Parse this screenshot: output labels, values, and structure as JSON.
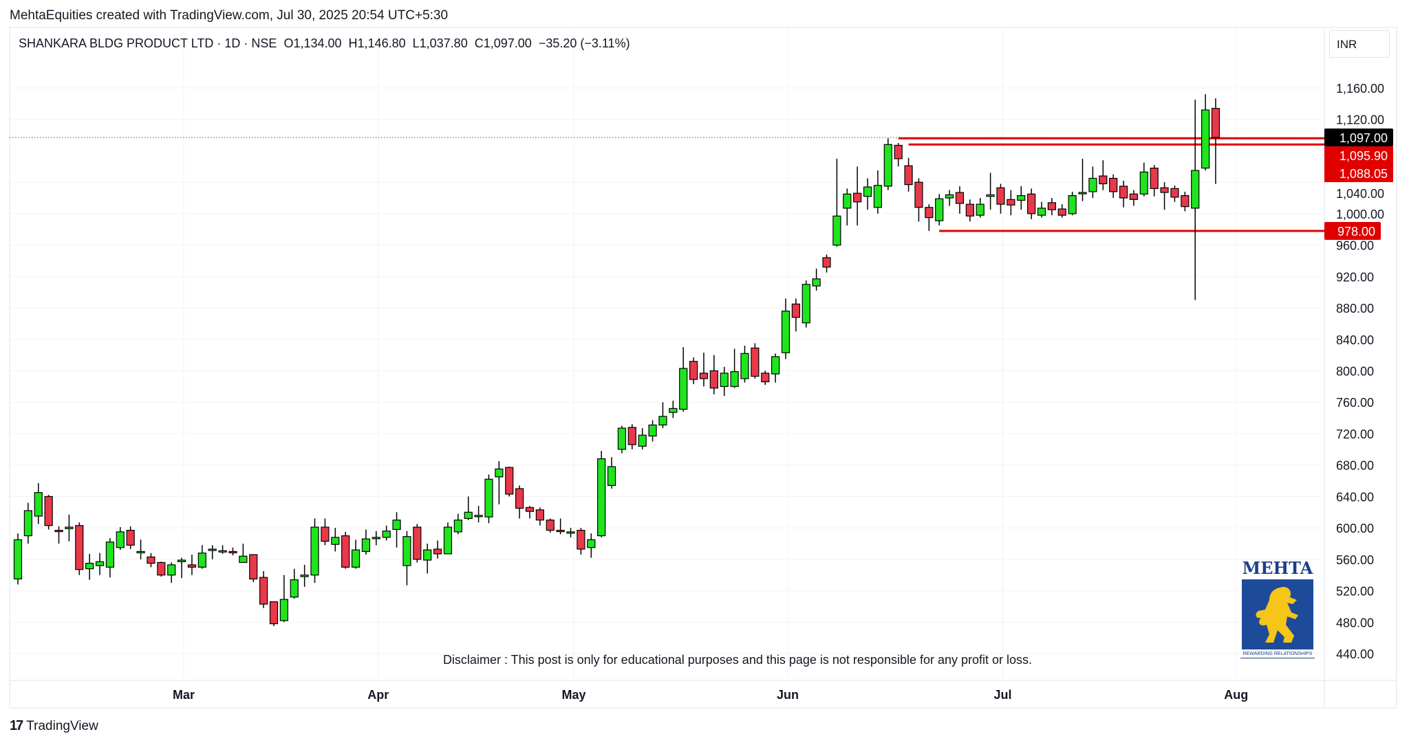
{
  "caption": "MehtaEquities created with TradingView.com, Jul 30, 2025 20:54 UTC+5:30",
  "legend": {
    "symbol": "SHANKARA BLDG PRODUCT LTD · 1D · NSE",
    "open": "O1,134.00",
    "high": "H1,146.80",
    "low": "L1,037.80",
    "close": "C1,097.00",
    "change": "−35.20 (−3.11%)"
  },
  "currency": "INR",
  "disclaimer": "Disclaimer : This post is only for educational purposes and this page is not responsible for any profit or loss.",
  "footer": {
    "brand": "TradingView",
    "logo_glyph": "17"
  },
  "watermark_logo": {
    "brand": "MEHTA",
    "tagline": "REWARDING RELATIONSHIPS"
  },
  "colors": {
    "up": "#1ee51e",
    "down": "#e8394a",
    "level": "#e00000",
    "last_price_bg": "#000000"
  },
  "chart_data": {
    "type": "candlestick",
    "title": "SHANKARA BLDG PRODUCT LTD · 1D · NSE",
    "ylim": [
      420,
      1180
    ],
    "yticks": [
      "1,160.00",
      "1,120.00",
      "1,000.00",
      "960.00",
      "920.00",
      "880.00",
      "840.00",
      "800.00",
      "760.00",
      "720.00",
      "680.00",
      "640.00",
      "600.00",
      "560.00",
      "520.00",
      "480.00",
      "440.00"
    ],
    "ytick_values": [
      1160,
      1120,
      1000,
      960,
      920,
      880,
      840,
      800,
      760,
      720,
      680,
      640,
      600,
      560,
      520,
      480,
      440
    ],
    "hidden_ytick": {
      "label": "1,040.00",
      "value": 1040
    },
    "xticks": [
      {
        "label": "Mar",
        "index": 16.2
      },
      {
        "label": "Apr",
        "index": 35.2
      },
      {
        "label": "May",
        "index": 54.3
      },
      {
        "label": "Jun",
        "index": 75.2
      },
      {
        "label": "Jul",
        "index": 96.2
      },
      {
        "label": "Aug",
        "index": 119.0
      }
    ],
    "ohlc_columns": [
      "open",
      "high",
      "low",
      "close"
    ],
    "candles": [
      [
        535,
        593,
        528,
        585
      ],
      [
        590,
        632,
        580,
        622
      ],
      [
        615,
        657,
        605,
        645
      ],
      [
        640,
        642,
        598,
        603
      ],
      [
        597,
        602,
        580,
        596
      ],
      [
        599,
        617,
        583,
        601
      ],
      [
        603,
        607,
        540,
        547
      ],
      [
        548,
        567,
        534,
        555
      ],
      [
        552,
        568,
        540,
        557
      ],
      [
        550,
        587,
        537,
        582
      ],
      [
        575,
        601,
        572,
        595
      ],
      [
        597,
        602,
        573,
        578
      ],
      [
        570,
        585,
        560,
        570
      ],
      [
        563,
        568,
        550,
        555
      ],
      [
        556,
        557,
        538,
        540
      ],
      [
        540,
        556,
        530,
        553
      ],
      [
        557,
        562,
        536,
        559
      ],
      [
        553,
        566,
        540,
        550
      ],
      [
        550,
        578,
        548,
        568
      ],
      [
        572,
        578,
        560,
        573
      ],
      [
        570,
        578,
        567,
        571
      ],
      [
        570,
        575,
        565,
        569
      ],
      [
        556,
        580,
        556,
        564
      ],
      [
        566,
        566,
        531,
        535
      ],
      [
        537,
        545,
        498,
        503
      ],
      [
        506,
        506,
        475,
        478
      ],
      [
        482,
        540,
        480,
        509
      ],
      [
        512,
        548,
        510,
        534
      ],
      [
        538,
        553,
        525,
        540
      ],
      [
        540,
        612,
        530,
        601
      ],
      [
        601,
        612,
        578,
        583
      ],
      [
        579,
        600,
        570,
        588
      ],
      [
        590,
        595,
        548,
        550
      ],
      [
        550,
        585,
        548,
        572
      ],
      [
        570,
        598,
        566,
        586
      ],
      [
        587,
        596,
        578,
        588
      ],
      [
        588,
        603,
        584,
        596
      ],
      [
        598,
        620,
        575,
        610
      ],
      [
        552,
        596,
        527,
        589
      ],
      [
        601,
        605,
        556,
        560
      ],
      [
        559,
        580,
        542,
        572
      ],
      [
        573,
        584,
        561,
        567
      ],
      [
        567,
        607,
        567,
        601
      ],
      [
        595,
        618,
        592,
        610
      ],
      [
        612,
        640,
        610,
        620
      ],
      [
        615,
        628,
        607,
        616
      ],
      [
        614,
        668,
        606,
        662
      ],
      [
        665,
        685,
        630,
        675
      ],
      [
        677,
        678,
        640,
        643
      ],
      [
        650,
        654,
        612,
        625
      ],
      [
        626,
        628,
        612,
        621
      ],
      [
        623,
        626,
        603,
        610
      ],
      [
        610,
        612,
        594,
        597
      ],
      [
        597,
        612,
        592,
        596
      ],
      [
        594,
        600,
        588,
        595
      ],
      [
        597,
        600,
        566,
        573
      ],
      [
        575,
        593,
        562,
        585
      ],
      [
        590,
        698,
        588,
        688
      ],
      [
        654,
        690,
        650,
        678
      ],
      [
        700,
        730,
        695,
        727
      ],
      [
        728,
        732,
        700,
        706
      ],
      [
        704,
        727,
        700,
        718
      ],
      [
        717,
        737,
        710,
        731
      ],
      [
        731,
        760,
        727,
        742
      ],
      [
        747,
        762,
        740,
        752
      ],
      [
        751,
        830,
        748,
        803
      ],
      [
        812,
        817,
        783,
        789
      ],
      [
        797,
        823,
        780,
        790
      ],
      [
        800,
        820,
        770,
        778
      ],
      [
        780,
        805,
        768,
        797
      ],
      [
        780,
        828,
        778,
        799
      ],
      [
        790,
        832,
        785,
        822
      ],
      [
        829,
        835,
        790,
        793
      ],
      [
        797,
        800,
        782,
        786
      ],
      [
        796,
        822,
        785,
        818
      ],
      [
        823,
        892,
        815,
        876
      ],
      [
        885,
        892,
        850,
        868
      ],
      [
        861,
        915,
        855,
        910
      ],
      [
        908,
        930,
        902,
        917
      ],
      [
        944,
        948,
        925,
        932
      ],
      [
        960,
        1070,
        958,
        997
      ],
      [
        1007,
        1032,
        985,
        1025
      ],
      [
        1026,
        1060,
        985,
        1015
      ],
      [
        1022,
        1045,
        1005,
        1034
      ],
      [
        1008,
        1055,
        1000,
        1036
      ],
      [
        1035,
        1096,
        1030,
        1088
      ],
      [
        1087,
        1090,
        1060,
        1070
      ],
      [
        1061,
        1071,
        1028,
        1037
      ],
      [
        1040,
        1045,
        990,
        1008
      ],
      [
        1008,
        1012,
        978,
        995
      ],
      [
        991,
        1025,
        985,
        1019
      ],
      [
        1020,
        1030,
        1010,
        1024
      ],
      [
        1027,
        1035,
        1000,
        1013
      ],
      [
        1012,
        1018,
        990,
        997
      ],
      [
        998,
        1020,
        995,
        1012
      ],
      [
        1022,
        1052,
        1005,
        1024
      ],
      [
        1033,
        1038,
        1000,
        1012
      ],
      [
        1018,
        1030,
        998,
        1011
      ],
      [
        1017,
        1035,
        1005,
        1023
      ],
      [
        1025,
        1032,
        993,
        1000
      ],
      [
        998,
        1015,
        995,
        1007
      ],
      [
        1014,
        1020,
        998,
        1005
      ],
      [
        1006,
        1012,
        995,
        998
      ],
      [
        1000,
        1028,
        998,
        1023
      ],
      [
        1026,
        1070,
        1016,
        1027
      ],
      [
        1028,
        1060,
        1020,
        1045
      ],
      [
        1048,
        1068,
        1030,
        1038
      ],
      [
        1045,
        1050,
        1020,
        1028
      ],
      [
        1035,
        1042,
        1008,
        1020
      ],
      [
        1025,
        1030,
        1010,
        1018
      ],
      [
        1025,
        1065,
        1022,
        1053
      ],
      [
        1058,
        1062,
        1022,
        1032
      ],
      [
        1033,
        1040,
        1005,
        1027
      ],
      [
        1032,
        1036,
        1015,
        1021
      ],
      [
        1023,
        1028,
        1003,
        1009
      ],
      [
        1007,
        1145,
        890,
        1055
      ],
      [
        1058,
        1152,
        1055,
        1132
      ],
      [
        1134,
        1146.8,
        1037.8,
        1097
      ]
    ],
    "levels": [
      {
        "label": "1,095.90",
        "value": 1095.9,
        "start_index": 86,
        "style": "solid"
      },
      {
        "label": "1,088.05",
        "value": 1088.05,
        "start_index": 87,
        "style": "solid"
      },
      {
        "label": "978.00",
        "value": 978,
        "start_index": 90,
        "style": "solid"
      }
    ],
    "last_price": {
      "label": "1,097.00",
      "value": 1097
    }
  }
}
